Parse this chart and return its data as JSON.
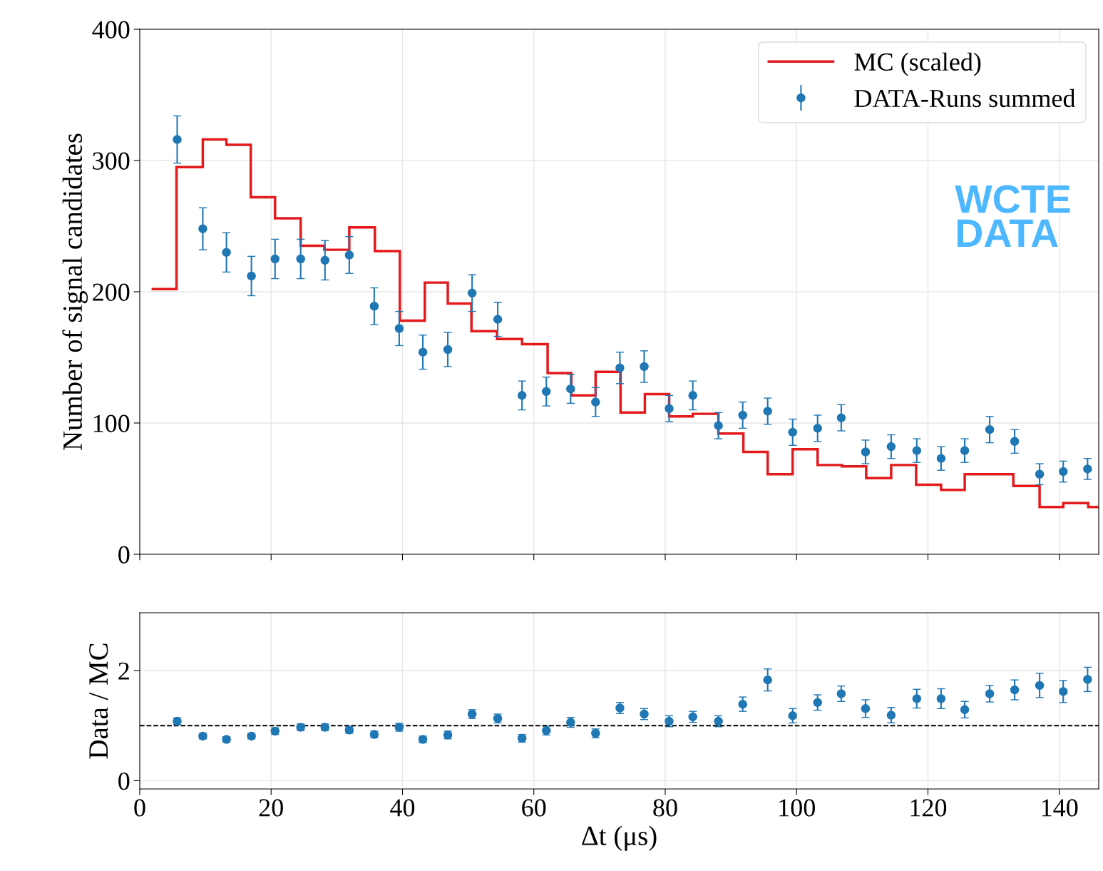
{
  "chart_data": [
    {
      "type": "histogram",
      "ylabel": "Number of signal candidates",
      "xlim": [
        0,
        146
      ],
      "ylim": [
        0,
        400
      ],
      "xticks": [
        0,
        20,
        40,
        60,
        80,
        100,
        120,
        140
      ],
      "yticks": [
        0,
        100,
        200,
        300,
        400
      ],
      "tick_labels": "y",
      "grid": true,
      "legend": "top right",
      "annotations": [
        "WCTE\nDATA"
      ],
      "series": [
        {
          "name": "MC (scaled)",
          "type": "histogram",
          "color": "#e3191c",
          "bins": [
            1.8,
            5.6,
            9.6,
            13.2,
            16.9,
            20.6,
            24.5,
            28.1,
            31.9,
            35.8,
            39.6,
            43.4,
            46.9,
            50.5,
            54.4,
            58.2,
            62.1,
            65.7,
            69.4,
            73.2,
            76.9,
            80.6,
            84.2,
            88.1,
            91.9,
            95.6,
            99.4,
            103.2,
            106.9,
            110.6,
            114.4,
            118.2,
            122,
            125.6,
            129.4,
            133,
            137,
            140.6,
            144.4,
            146
          ],
          "values": [
            202,
            295,
            316,
            312,
            272,
            256,
            235,
            232,
            249,
            231,
            178,
            207,
            191,
            170,
            164,
            160,
            138,
            121,
            139,
            108,
            122,
            105,
            107,
            92,
            78,
            61,
            80,
            68,
            67,
            58,
            68,
            53,
            49,
            61,
            61,
            52,
            36,
            39,
            36
          ]
        },
        {
          "name": "DATA-Runs summed",
          "type": "scatter",
          "color": "#1f77b4",
          "marker": "circle",
          "x": [
            5.7,
            9.6,
            13.2,
            17,
            20.6,
            24.5,
            28.2,
            31.9,
            35.7,
            39.5,
            43.1,
            46.9,
            50.6,
            54.5,
            58.2,
            61.9,
            65.6,
            69.4,
            73.1,
            76.8,
            80.6,
            84.2,
            88.1,
            91.8,
            95.6,
            99.4,
            103.2,
            106.8,
            110.5,
            114.4,
            118.3,
            122,
            125.6,
            129.4,
            133.2,
            137,
            140.6,
            144.3
          ],
          "values": [
            316,
            248,
            230,
            212,
            225,
            225,
            224,
            228,
            189,
            172,
            154,
            156,
            199,
            179,
            121,
            124,
            126,
            116,
            142,
            143,
            111,
            121,
            98,
            106,
            109,
            93,
            96,
            104,
            78,
            82,
            79,
            73,
            79,
            95,
            86,
            61,
            63,
            65
          ],
          "errors": [
            18,
            16,
            15,
            15,
            15,
            15,
            15,
            14,
            14,
            13,
            13,
            13,
            14,
            13,
            11,
            11,
            11,
            11,
            12,
            12,
            10,
            11,
            10,
            10,
            10,
            10,
            10,
            10,
            9,
            9,
            9,
            9,
            9,
            10,
            9,
            8,
            8,
            8
          ]
        }
      ]
    },
    {
      "type": "scatter",
      "xlabel": "Δt (μs)",
      "ylabel": "Data / MC",
      "xlim": [
        0,
        146
      ],
      "ylim": [
        -0.15,
        3.05
      ],
      "xticks": [
        0,
        20,
        40,
        60,
        80,
        100,
        120,
        140
      ],
      "yticks": [
        0,
        2
      ],
      "grid": true,
      "ref_lines": [
        {
          "axis": "y",
          "value": 1,
          "color": "#000000",
          "line_style": "dashed"
        }
      ],
      "series": [
        {
          "color": "#1f77b4",
          "marker": "circle",
          "x": [
            5.7,
            9.6,
            13.2,
            17,
            20.6,
            24.5,
            28.2,
            31.9,
            35.7,
            39.5,
            43.1,
            46.9,
            50.6,
            54.5,
            58.2,
            61.9,
            65.6,
            69.4,
            73.1,
            76.8,
            80.6,
            84.2,
            88.1,
            91.8,
            95.6,
            99.4,
            103.2,
            106.8,
            110.5,
            114.4,
            118.3,
            122,
            125.6,
            129.4,
            133.2,
            137,
            140.6,
            144.3
          ],
          "values": [
            1.08,
            0.81,
            0.75,
            0.81,
            0.9,
            0.97,
            0.97,
            0.92,
            0.84,
            0.97,
            0.75,
            0.83,
            1.21,
            1.13,
            0.77,
            0.91,
            1.06,
            0.86,
            1.32,
            1.21,
            1.08,
            1.16,
            1.08,
            1.39,
            1.83,
            1.18,
            1.42,
            1.58,
            1.31,
            1.19,
            1.49,
            1.49,
            1.29,
            1.58,
            1.65,
            1.73,
            1.62,
            1.84
          ],
          "errors": [
            0.06,
            0.05,
            0.05,
            0.05,
            0.06,
            0.06,
            0.06,
            0.06,
            0.06,
            0.07,
            0.06,
            0.07,
            0.08,
            0.08,
            0.07,
            0.08,
            0.09,
            0.08,
            0.1,
            0.1,
            0.1,
            0.1,
            0.1,
            0.13,
            0.2,
            0.13,
            0.14,
            0.14,
            0.16,
            0.14,
            0.17,
            0.18,
            0.15,
            0.15,
            0.18,
            0.22,
            0.2,
            0.22
          ]
        }
      ]
    }
  ]
}
